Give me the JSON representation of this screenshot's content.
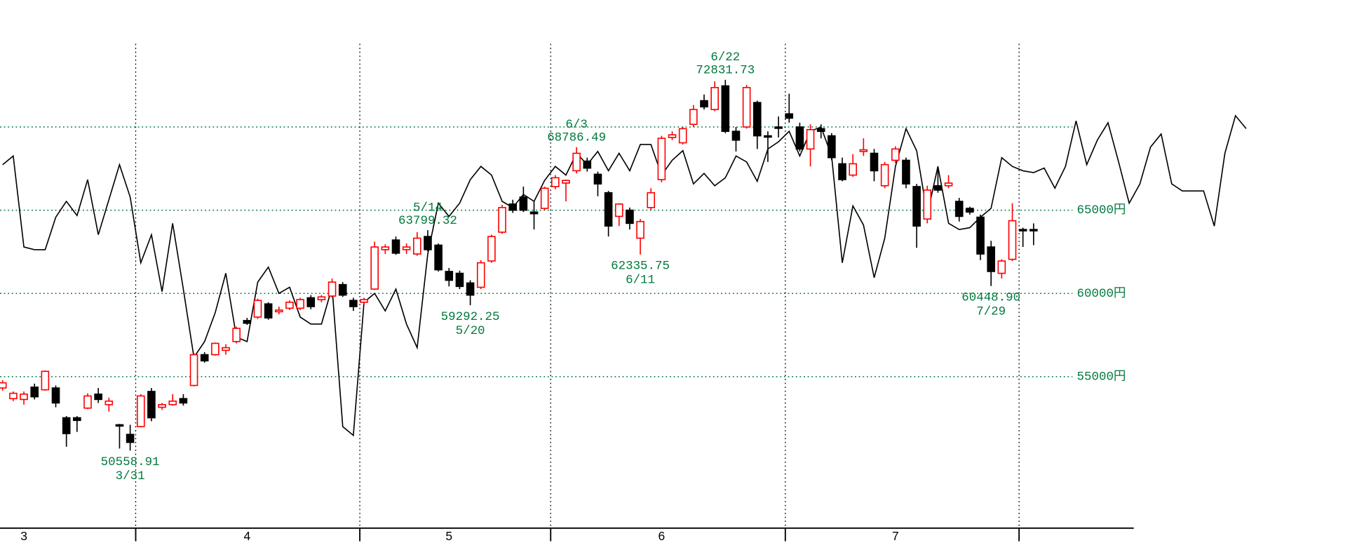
{
  "chart_data": {
    "type": "candlestick",
    "up_color": "#ff0000",
    "down_color": "#000000",
    "grid_color": "#007a3d",
    "grid": true,
    "ylim": [
      45900,
      77630
    ],
    "yticks": [
      {
        "value": 55000,
        "label": "55000円"
      },
      {
        "value": 60000,
        "label": "60000円"
      },
      {
        "value": 65000,
        "label": "65000円"
      },
      {
        "value": 70000,
        "label": null
      }
    ],
    "categories": [
      null,
      null,
      "3",
      null,
      null,
      null,
      null,
      null,
      null,
      null,
      null,
      null,
      null,
      null,
      null,
      null,
      null,
      null,
      null,
      null,
      null,
      null,
      null,
      "4",
      null,
      null,
      null,
      null,
      null,
      null,
      null,
      null,
      null,
      null,
      null,
      null,
      null,
      null,
      null,
      null,
      null,
      null,
      "5",
      null,
      null,
      null,
      null,
      null,
      null,
      null,
      null,
      null,
      null,
      null,
      null,
      null,
      null,
      null,
      null,
      null,
      null,
      null,
      "6",
      null,
      null,
      null,
      null,
      null,
      null,
      null,
      null,
      null,
      null,
      null,
      null,
      null,
      null,
      null,
      null,
      null,
      null,
      null,
      null,
      null,
      "7",
      null,
      null,
      null,
      null,
      null,
      null,
      null,
      null,
      null,
      null,
      null,
      null,
      null,
      null,
      null,
      null,
      null,
      null,
      null,
      null,
      null,
      null,
      null,
      null,
      null,
      null,
      null,
      null,
      null,
      null,
      null,
      null,
      null
    ],
    "open": [
      54320,
      53680,
      53630,
      54370,
      54210,
      54320,
      52530,
      52530,
      53110,
      53950,
      53320,
      52110,
      51530,
      52000,
      54110,
      53160,
      53320,
      53680,
      54470,
      56320,
      56320,
      56580,
      57110,
      58370,
      58580,
      59370,
      58900,
      59110,
      59110,
      59740,
      59630,
      59840,
      60530,
      59580,
      59470,
      60260,
      62630,
      63210,
      62630,
      62370,
      63420,
      62900,
      61320,
      61210,
      60630,
      60370,
      61950,
      63680,
      65370,
      65790,
      64890,
      65110,
      66420,
      66630,
      67370,
      67950,
      67160,
      66050,
      64630,
      65000,
      63320,
      65160,
      66840,
      69370,
      69050,
      70160,
      71580,
      71050,
      72470,
      69740,
      70000,
      71470,
      69470,
      70000,
      70790,
      70000,
      68680,
      69900,
      69470,
      67790,
      67110,
      68530,
      68420,
      66470,
      68000,
      68000,
      66420,
      64470,
      66470,
      66470,
      65530,
      65110,
      64580,
      62790,
      61210,
      62050,
      63840,
      63840,
      null,
      null,
      null,
      null,
      null,
      null,
      null,
      null,
      null,
      null,
      null,
      null,
      null,
      null,
      null,
      null,
      null,
      null,
      null,
      null
    ],
    "high": [
      54790,
      54110,
      54110,
      54580,
      55370,
      54470,
      52630,
      52630,
      54000,
      54320,
      53740,
      52160,
      52110,
      53950,
      54320,
      53420,
      53950,
      53950,
      56420,
      56470,
      57050,
      56950,
      58000,
      58530,
      59680,
      59470,
      59210,
      59580,
      59740,
      59900,
      59900,
      60890,
      60680,
      59740,
      59740,
      63110,
      62950,
      63420,
      63000,
      63680,
      63799.32,
      63000,
      61530,
      61370,
      60790,
      62000,
      63530,
      65320,
      65630,
      66420,
      65530,
      66420,
      67110,
      66840,
      68786.49,
      68160,
      67320,
      66160,
      65420,
      65160,
      64470,
      66320,
      69470,
      69740,
      70000,
      71320,
      71950,
      72740,
      72831.73,
      70000,
      72530,
      71580,
      69740,
      70630,
      72000,
      70260,
      70160,
      70160,
      69630,
      68160,
      68370,
      69320,
      68680,
      67900,
      68840,
      68160,
      66580,
      66470,
      67630,
      67110,
      65740,
      65210,
      64740,
      63160,
      62050,
      65420,
      63950,
      64210,
      null,
      null,
      null,
      null,
      null,
      null,
      null,
      null,
      null,
      null,
      null,
      null,
      null,
      null,
      null,
      null,
      null,
      null,
      null,
      null
    ],
    "low": [
      54160,
      53530,
      53320,
      53630,
      54160,
      53160,
      50790,
      51680,
      53050,
      53420,
      52900,
      50680,
      50558.91,
      51950,
      52320,
      53000,
      53260,
      53260,
      54420,
      55840,
      56260,
      56320,
      57000,
      58110,
      58470,
      58420,
      58740,
      59000,
      59000,
      59050,
      59470,
      59740,
      59790,
      58950,
      59320,
      60210,
      62370,
      62320,
      62370,
      62260,
      62530,
      61320,
      60420,
      60260,
      59292.25,
      60260,
      61840,
      63580,
      64840,
      64890,
      63840,
      65000,
      66260,
      65530,
      67210,
      67320,
      65840,
      63420,
      64050,
      63840,
      62335.75,
      65000,
      66680,
      69210,
      68950,
      70000,
      71050,
      70950,
      69630,
      68530,
      69900,
      68680,
      67900,
      69370,
      70260,
      68530,
      67630,
      69320,
      68000,
      66740,
      67000,
      68260,
      66740,
      66320,
      67840,
      66320,
      62740,
      64210,
      66050,
      66320,
      64320,
      64740,
      62000,
      60448.9,
      60890,
      61950,
      62790,
      62900,
      null,
      null,
      null,
      null,
      null,
      null,
      null,
      null,
      null,
      null,
      null,
      null,
      null,
      null,
      null,
      null,
      null,
      null,
      null,
      null
    ],
    "close": [
      54630,
      54000,
      53950,
      53790,
      55320,
      53420,
      51580,
      52370,
      53840,
      53630,
      53530,
      52050,
      51050,
      53840,
      52530,
      53320,
      53530,
      53420,
      56320,
      55950,
      57000,
      56740,
      57900,
      58210,
      59580,
      58530,
      59000,
      59470,
      59630,
      59210,
      59790,
      60680,
      59900,
      59210,
      59630,
      62790,
      62790,
      62420,
      62790,
      63320,
      62630,
      61420,
      60790,
      60420,
      59900,
      61840,
      63420,
      65160,
      65000,
      65000,
      64790,
      66320,
      66950,
      66790,
      68420,
      67530,
      66580,
      64050,
      65370,
      64210,
      64320,
      66050,
      69320,
      69530,
      69900,
      71050,
      71210,
      72370,
      69740,
      69210,
      72370,
      69470,
      69420,
      69950,
      70530,
      68680,
      69840,
      69740,
      68160,
      66840,
      67790,
      68630,
      67370,
      67740,
      68680,
      66580,
      64050,
      66210,
      66210,
      66630,
      64630,
      64890,
      62370,
      61320,
      61950,
      64370,
      63790,
      63790,
      null,
      null,
      null,
      null,
      null,
      null,
      null,
      null,
      null,
      null,
      null,
      null,
      null,
      null,
      null,
      null,
      null,
      null,
      null,
      null
    ],
    "overlay": {
      "color": "#000000",
      "values": [
        67740,
        68260,
        62790,
        62630,
        62630,
        64580,
        65530,
        64680,
        66840,
        63530,
        65630,
        67740,
        65790,
        61840,
        63530,
        60110,
        64210,
        60260,
        56160,
        57110,
        58840,
        61210,
        57370,
        57110,
        60680,
        61580,
        60000,
        60370,
        58580,
        58160,
        58160,
        60370,
        52000,
        51470,
        59470,
        60000,
        58950,
        60260,
        58160,
        56740,
        62370,
        65420,
        64630,
        65420,
        66840,
        67630,
        67110,
        65530,
        65160,
        65950,
        65530,
        66790,
        67630,
        67110,
        68420,
        67740,
        68530,
        67370,
        68420,
        67370,
        68950,
        68950,
        67110,
        68000,
        68580,
        66580,
        67210,
        66470,
        66950,
        68260,
        67900,
        66740,
        68680,
        69110,
        69740,
        68260,
        69740,
        70000,
        68260,
        61840,
        65260,
        64110,
        60950,
        63320,
        67630,
        69900,
        68580,
        64740,
        67630,
        64210,
        63840,
        63950,
        64580,
        65110,
        68160,
        67630,
        67370,
        67260,
        67530,
        66320,
        67630,
        70370,
        67740,
        69210,
        70260,
        67900,
        65420,
        66580,
        68790,
        69580,
        66580,
        66160,
        66160,
        66160,
        64050,
        68420,
        70680,
        69900
      ]
    },
    "high_labels": [
      null,
      null,
      null,
      null,
      null,
      null,
      null,
      null,
      null,
      null,
      null,
      null,
      null,
      null,
      null,
      null,
      null,
      null,
      null,
      null,
      null,
      null,
      null,
      null,
      null,
      null,
      null,
      null,
      null,
      null,
      null,
      null,
      null,
      null,
      null,
      null,
      null,
      null,
      null,
      null,
      {
        "date": "5/14",
        "label": "63799.32"
      },
      null,
      null,
      null,
      null,
      null,
      null,
      null,
      null,
      null,
      null,
      null,
      null,
      null,
      {
        "date": "6/3",
        "label": "68786.49"
      },
      null,
      null,
      null,
      null,
      null,
      null,
      null,
      null,
      null,
      null,
      null,
      null,
      null,
      {
        "date": "6/22",
        "label": "72831.73"
      },
      null,
      null,
      null,
      null,
      null,
      null,
      null,
      null,
      null,
      null,
      null,
      null,
      null,
      null,
      null,
      null,
      null,
      null,
      null,
      null,
      null,
      null,
      null,
      null,
      null,
      null,
      null,
      null,
      null,
      null,
      null,
      null,
      null,
      null,
      null,
      null,
      null,
      null,
      null,
      null,
      null,
      null,
      null,
      null,
      null,
      null,
      null,
      null
    ],
    "low_labels": [
      null,
      null,
      null,
      null,
      null,
      null,
      null,
      null,
      null,
      null,
      null,
      null,
      {
        "date": "3/31",
        "label": "50558.91"
      },
      null,
      null,
      null,
      null,
      null,
      null,
      null,
      null,
      null,
      null,
      null,
      null,
      null,
      null,
      null,
      null,
      null,
      null,
      null,
      null,
      null,
      null,
      null,
      null,
      null,
      null,
      null,
      null,
      null,
      null,
      null,
      {
        "date": "5/20",
        "label": "59292.25"
      },
      null,
      null,
      null,
      null,
      null,
      null,
      null,
      null,
      null,
      null,
      null,
      null,
      null,
      null,
      null,
      {
        "date": "6/11",
        "label": "62335.75"
      },
      null,
      null,
      null,
      null,
      null,
      null,
      null,
      null,
      null,
      null,
      null,
      null,
      null,
      null,
      null,
      null,
      null,
      null,
      null,
      null,
      null,
      null,
      null,
      null,
      null,
      null,
      null,
      null,
      null,
      null,
      null,
      null,
      {
        "date": "7/29",
        "label": "60448.90"
      },
      null,
      null,
      null,
      null,
      null,
      null,
      null,
      null,
      null,
      null,
      null,
      null,
      null,
      null,
      null,
      null,
      null,
      null,
      null,
      null,
      null,
      null,
      null
    ]
  }
}
